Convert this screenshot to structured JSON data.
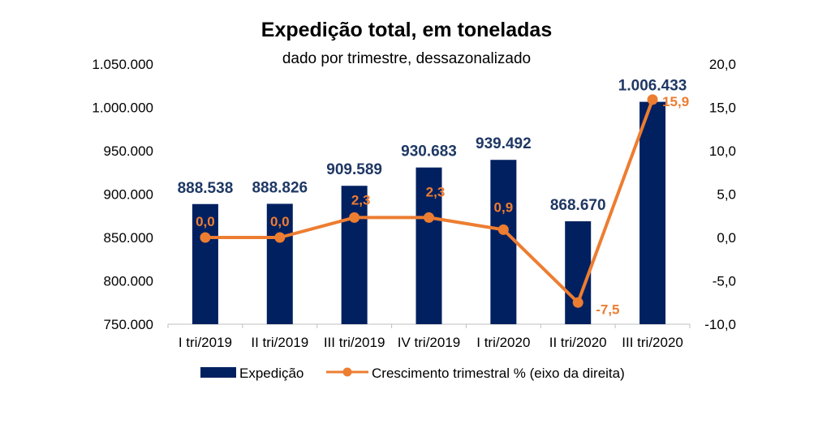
{
  "chart_data": {
    "type": "bar",
    "title": "Expedição total, em toneladas",
    "subtitle": "dado por trimestre, dessazonalizado",
    "categories": [
      "I tri/2019",
      "II tri/2019",
      "III tri/2019",
      "IV tri/2019",
      "I tri/2020",
      "II tri/2020",
      "III tri/2020"
    ],
    "series": [
      {
        "name": "Expedição",
        "type": "bar",
        "axis": "left",
        "color": "#002060",
        "values": [
          888538,
          888826,
          909589,
          930683,
          939492,
          868670,
          1006433
        ],
        "labels": [
          "888.538",
          "888.826",
          "909.589",
          "930.683",
          "939.492",
          "868.670",
          "1.006.433"
        ]
      },
      {
        "name": "Crescimento trimestral % (eixo da direita)",
        "type": "line",
        "axis": "right",
        "color": "#ED7D31",
        "values": [
          0.0,
          0.0,
          2.3,
          2.3,
          0.9,
          -7.5,
          15.9
        ],
        "labels": [
          "0,0",
          "0,0",
          "2,3",
          "2,3",
          "0,9",
          "-7,5",
          "15,9"
        ]
      }
    ],
    "y_left": {
      "ylim": [
        750000,
        1050000
      ],
      "ticks": [
        "750.000",
        "800.000",
        "850.000",
        "900.000",
        "950.000",
        "1.000.000",
        "1.050.000"
      ]
    },
    "y_right": {
      "ylim": [
        -10,
        20
      ],
      "ticks": [
        "-10,0",
        "-5,0",
        "0,0",
        "5,0",
        "10,0",
        "15,0",
        "20,0"
      ]
    },
    "grid": false,
    "legend_position": "bottom"
  }
}
